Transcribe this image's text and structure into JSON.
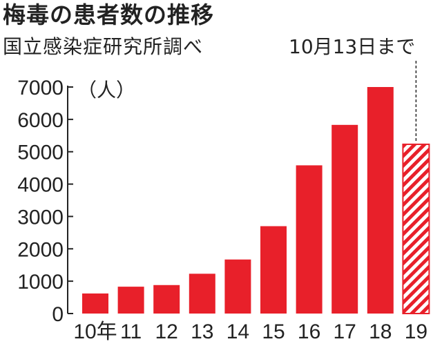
{
  "title": "梅毒の患者数の推移",
  "source": "国立感染症研究所調べ",
  "annotation": "10月13日まで",
  "chart_data": {
    "type": "bar",
    "title": "梅毒の患者数の推移",
    "ylabel": "（人）",
    "xlabel": "",
    "categories": [
      "10年",
      "11",
      "12",
      "13",
      "14",
      "15",
      "16",
      "17",
      "18",
      "19"
    ],
    "values": [
      620,
      830,
      880,
      1230,
      1670,
      2700,
      4580,
      5830,
      7000,
      5230
    ],
    "partial_last": true,
    "ylim": [
      0,
      7000
    ],
    "yticks": [
      "0",
      "1000",
      "2000",
      "3000",
      "4000",
      "5000",
      "6000",
      "7000"
    ],
    "bar_color": "#e8202a",
    "grid": false
  }
}
